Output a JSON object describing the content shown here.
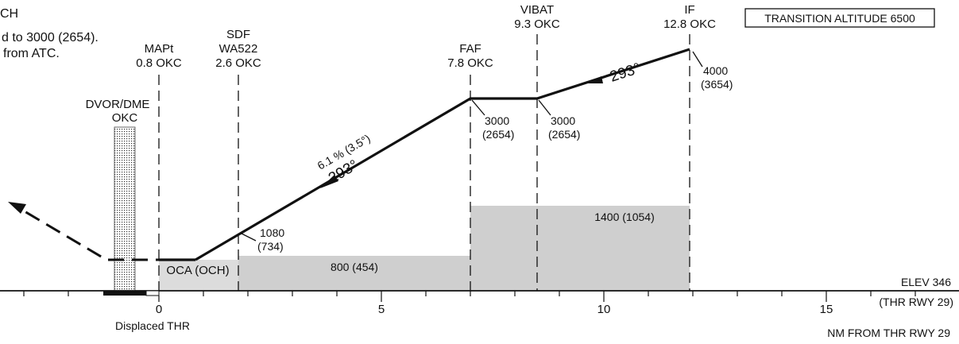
{
  "notes": {
    "line1": "CH",
    "line2": "d to 3000 (2654).",
    "line3": "from ATC."
  },
  "transition_altitude": "TRANSITION ALTITUDE 6500",
  "fixes": {
    "mapt": {
      "name": "MAPt",
      "dist": "0.8 OKC"
    },
    "sdf": {
      "name": "SDF",
      "id": "WA522",
      "dist": "2.6 OKC"
    },
    "faf": {
      "name": "FAF",
      "dist": "7.8 OKC"
    },
    "vibat": {
      "name": "VIBAT",
      "dist": "9.3 OKC"
    },
    "if": {
      "name": "IF",
      "dist": "12.8 OKC"
    }
  },
  "navaid": {
    "name": "DVOR/DME",
    "id": "OKC"
  },
  "altitudes": {
    "if": {
      "alt": "4000",
      "height": "(3654)"
    },
    "vibat": {
      "alt": "3000",
      "height": "(2654)"
    },
    "faf": {
      "alt": "3000",
      "height": "(2654)"
    },
    "sdf": {
      "alt": "1080",
      "height": "(734)"
    }
  },
  "tracks": {
    "intermediate": "293°",
    "final_gradient": "6.1 % (3.5°)",
    "final_track": "293°"
  },
  "obstacle_segments": [
    {
      "label": "800 (454)"
    },
    {
      "label": "1400 (1054)"
    }
  ],
  "oca_label": "OCA (OCH)",
  "elevation": "ELEV  346",
  "threshold": "(THR RWY 29)",
  "displaced_thr": "Displaced THR",
  "axis": {
    "ticks": [
      "0",
      "5",
      "10",
      "15"
    ],
    "title": "NM FROM THR RWY 29"
  }
}
